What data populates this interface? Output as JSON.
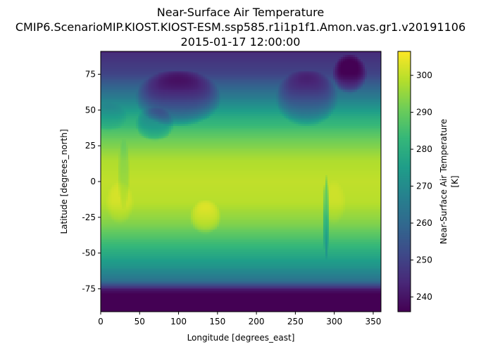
{
  "chart_data": {
    "type": "heatmap",
    "title_lines": [
      "Near-Surface Air Temperature",
      "CMIP6.ScenarioMIP.KIOST.KIOST-ESM.ssp585.r1i1p1f1.Amon.vas.gr1.v20191106",
      "2015-01-17 12:00:00"
    ],
    "xlabel": "Longitude [degrees_east]",
    "ylabel": "Latitude [degrees_north]",
    "xlim": [
      0,
      360
    ],
    "ylim": [
      -91,
      91
    ],
    "xticks": [
      0,
      50,
      100,
      150,
      200,
      250,
      300,
      350
    ],
    "yticks": [
      -75,
      -50,
      -25,
      0,
      25,
      50,
      75
    ],
    "colormap": "viridis",
    "colorbar": {
      "label_lines": [
        "Near-Surface Air Temperature",
        "[K]"
      ],
      "range": [
        236,
        306.5
      ],
      "ticks": [
        240,
        250,
        260,
        270,
        280,
        290,
        300
      ]
    },
    "zonal_mean_approx": {
      "lat": [
        90,
        75,
        60,
        45,
        30,
        15,
        0,
        -15,
        -30,
        -45,
        -60,
        -70,
        -75,
        -80,
        -90
      ],
      "value": [
        245,
        250,
        264,
        279,
        290,
        298,
        300,
        299,
        293,
        283,
        272,
        262,
        248,
        240,
        242
      ]
    },
    "grid": false
  }
}
